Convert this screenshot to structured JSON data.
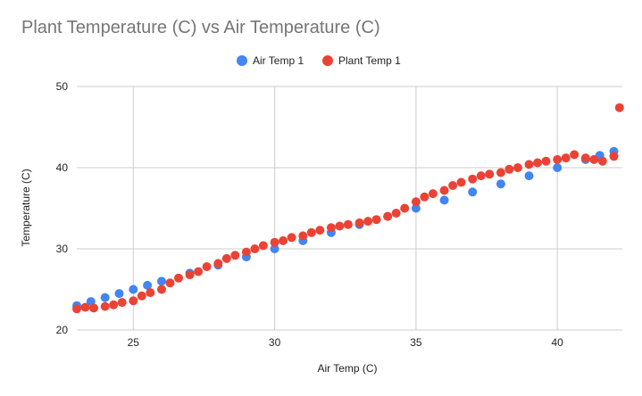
{
  "chart_data": {
    "type": "scatter",
    "title": "Plant Temperature (C) vs Air Temperature (C)",
    "xlabel": "Air Temp (C)",
    "ylabel": "Temperature (C)",
    "xlim": [
      23,
      42.3
    ],
    "ylim": [
      20,
      50
    ],
    "x_ticks": [
      "25",
      "30",
      "35",
      "40"
    ],
    "y_ticks": [
      "20",
      "30",
      "40",
      "50"
    ],
    "grid": true,
    "legend_position": "top-center",
    "series": [
      {
        "name": "Air Temp 1",
        "color": "#4285f4",
        "x": [
          23.0,
          23.5,
          24.0,
          24.5,
          25.0,
          25.5,
          26.0,
          27.0,
          28.0,
          29.0,
          30.0,
          31.0,
          32.0,
          33.0,
          34.0,
          35.0,
          36.0,
          37.0,
          38.0,
          39.0,
          40.0,
          41.0,
          41.5,
          42.0
        ],
        "y": [
          23.0,
          23.5,
          24.0,
          24.5,
          25.0,
          25.5,
          26.0,
          27.0,
          28.0,
          29.0,
          30.0,
          31.0,
          32.0,
          33.0,
          34.0,
          35.0,
          36.0,
          37.0,
          38.0,
          39.0,
          40.0,
          41.0,
          41.5,
          42.0
        ]
      },
      {
        "name": "Plant Temp 1",
        "color": "#ea4335",
        "x": [
          23.0,
          23.3,
          23.6,
          24.0,
          24.3,
          24.6,
          25.0,
          25.3,
          25.6,
          26.0,
          26.3,
          26.6,
          27.0,
          27.3,
          27.6,
          28.0,
          28.3,
          28.6,
          29.0,
          29.3,
          29.6,
          30.0,
          30.3,
          30.6,
          31.0,
          31.3,
          31.6,
          32.0,
          32.3,
          32.6,
          33.0,
          33.3,
          33.6,
          34.0,
          34.3,
          34.6,
          35.0,
          35.3,
          35.6,
          36.0,
          36.3,
          36.6,
          37.0,
          37.3,
          37.6,
          38.0,
          38.3,
          38.6,
          39.0,
          39.3,
          39.6,
          40.0,
          40.3,
          40.6,
          41.0,
          41.3,
          41.6,
          42.0,
          42.2
        ],
        "y": [
          22.6,
          22.8,
          22.7,
          22.9,
          23.1,
          23.4,
          23.6,
          24.2,
          24.6,
          25.0,
          25.8,
          26.4,
          26.8,
          27.2,
          27.8,
          28.2,
          28.8,
          29.2,
          29.6,
          30.0,
          30.4,
          30.8,
          31.0,
          31.4,
          31.6,
          32.0,
          32.3,
          32.6,
          32.8,
          33.0,
          33.2,
          33.4,
          33.6,
          34.0,
          34.4,
          35.0,
          35.8,
          36.4,
          36.8,
          37.2,
          37.8,
          38.2,
          38.6,
          39.0,
          39.2,
          39.4,
          39.8,
          40.0,
          40.4,
          40.6,
          40.8,
          41.0,
          41.2,
          41.6,
          41.2,
          41.0,
          40.8,
          41.4,
          47.4
        ]
      }
    ]
  }
}
